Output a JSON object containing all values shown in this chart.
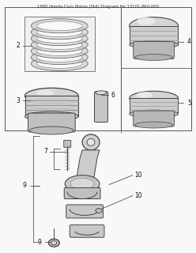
{
  "bg_color": "#f8f8f8",
  "line_color": "#444444",
  "part_fill": "#e0e0e0",
  "part_dark": "#b0b0b0",
  "part_light": "#efefef",
  "border_color": "#555555",
  "label_color": "#111111",
  "fig_width": 2.48,
  "fig_height": 3.2,
  "dpi": 100,
  "top_note": "1980 Honda Civic Piston (Std) Diagram for 13101-PA0-000"
}
